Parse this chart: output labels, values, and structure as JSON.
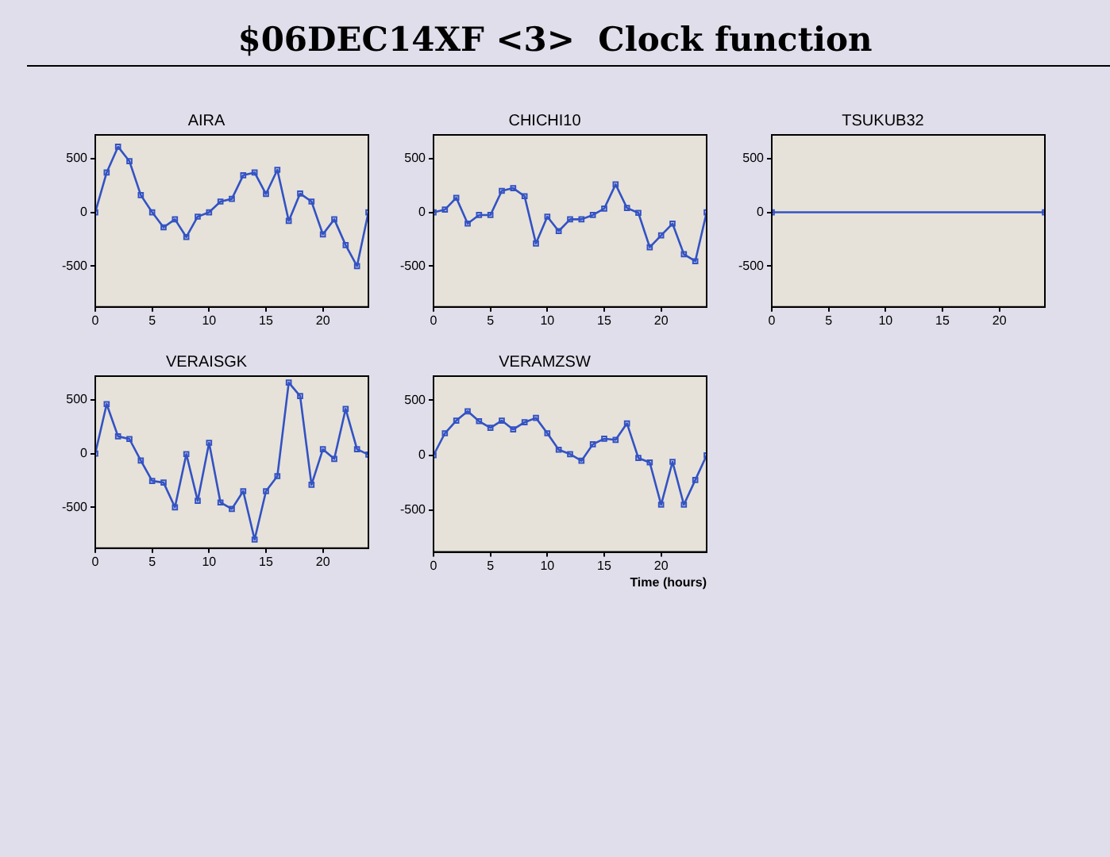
{
  "chart_data": [
    {
      "type": "line",
      "title": "AIRA",
      "annotations": [
        "$06DEC14XF <3>  Clock function"
      ],
      "x": [
        0,
        1,
        2,
        3,
        4,
        5,
        6,
        7,
        8,
        9,
        10,
        11,
        12,
        13,
        14,
        15,
        16,
        17,
        18,
        19,
        20,
        21,
        22,
        23,
        24
      ],
      "series": [
        {
          "color": "#3352c4",
          "values": [
            0,
            370,
            610,
            475,
            160,
            0,
            -140,
            -65,
            -230,
            -40,
            0,
            100,
            125,
            345,
            370,
            170,
            395,
            -80,
            175,
            100,
            -205,
            -65,
            -305,
            -500,
            0
          ]
        }
      ],
      "xlim": [
        0,
        24
      ],
      "xticks": [
        0,
        5,
        10,
        15,
        20
      ],
      "ylim": [
        -880,
        720
      ],
      "yticks": [
        -500,
        0,
        500
      ],
      "marker": "square",
      "grid": false,
      "legend": false
    },
    {
      "type": "line",
      "title": "CHICHI10",
      "x": [
        0,
        1,
        2,
        3,
        4,
        5,
        6,
        7,
        8,
        9,
        10,
        11,
        12,
        13,
        14,
        15,
        16,
        17,
        18,
        19,
        20,
        21,
        22,
        23,
        24
      ],
      "series": [
        {
          "color": "#3352c4",
          "values": [
            0,
            25,
            135,
            -105,
            -25,
            -25,
            200,
            225,
            150,
            -290,
            -40,
            -175,
            -65,
            -65,
            -25,
            35,
            260,
            40,
            -5,
            -325,
            -215,
            -105,
            -390,
            -455,
            0
          ]
        }
      ],
      "xlim": [
        0,
        24
      ],
      "xticks": [
        0,
        5,
        10,
        15,
        20
      ],
      "ylim": [
        -880,
        720
      ],
      "yticks": [
        -500,
        0,
        500
      ],
      "marker": "square",
      "grid": false,
      "legend": false
    },
    {
      "type": "line",
      "title": "TSUKUB32",
      "x": [
        0,
        24
      ],
      "series": [
        {
          "color": "#3352c4",
          "values": [
            0,
            0
          ]
        }
      ],
      "xlim": [
        0,
        24
      ],
      "xticks": [
        0,
        5,
        10,
        15,
        20
      ],
      "ylim": [
        -880,
        720
      ],
      "yticks": [
        -500,
        0,
        500
      ],
      "marker": "square",
      "grid": false,
      "legend": false
    },
    {
      "type": "line",
      "title": "VERAISGK",
      "x": [
        0,
        1,
        2,
        3,
        4,
        5,
        6,
        7,
        8,
        9,
        10,
        11,
        12,
        13,
        14,
        15,
        16,
        17,
        18,
        19,
        20,
        21,
        22,
        23,
        24
      ],
      "series": [
        {
          "color": "#3352c4",
          "values": [
            0,
            460,
            160,
            135,
            -65,
            -255,
            -270,
            -500,
            -5,
            -440,
            100,
            -455,
            -515,
            -350,
            -800,
            -350,
            -210,
            660,
            535,
            -290,
            40,
            -50,
            415,
            40,
            -10
          ]
        }
      ],
      "xlim": [
        0,
        24
      ],
      "xticks": [
        0,
        5,
        10,
        15,
        20
      ],
      "ylim": [
        -880,
        720
      ],
      "yticks": [
        -500,
        0,
        500
      ],
      "marker": "square",
      "grid": false,
      "legend": false
    },
    {
      "type": "line",
      "title": "VERAMZSW",
      "xlabel": "Time (hours)",
      "x": [
        0,
        1,
        2,
        3,
        4,
        5,
        6,
        7,
        8,
        9,
        10,
        11,
        12,
        13,
        14,
        15,
        16,
        17,
        18,
        19,
        20,
        21,
        22,
        23,
        24
      ],
      "series": [
        {
          "color": "#3352c4",
          "values": [
            0,
            200,
            315,
            400,
            310,
            250,
            315,
            235,
            300,
            340,
            200,
            50,
            10,
            -50,
            100,
            150,
            140,
            290,
            -25,
            -65,
            -450,
            -60,
            -450,
            -225,
            0
          ]
        }
      ],
      "xlim": [
        0,
        24
      ],
      "xticks": [
        0,
        5,
        10,
        15,
        20
      ],
      "ylim": [
        -880,
        720
      ],
      "yticks": [
        -500,
        0,
        500
      ],
      "marker": "square",
      "grid": false,
      "legend": false
    }
  ]
}
